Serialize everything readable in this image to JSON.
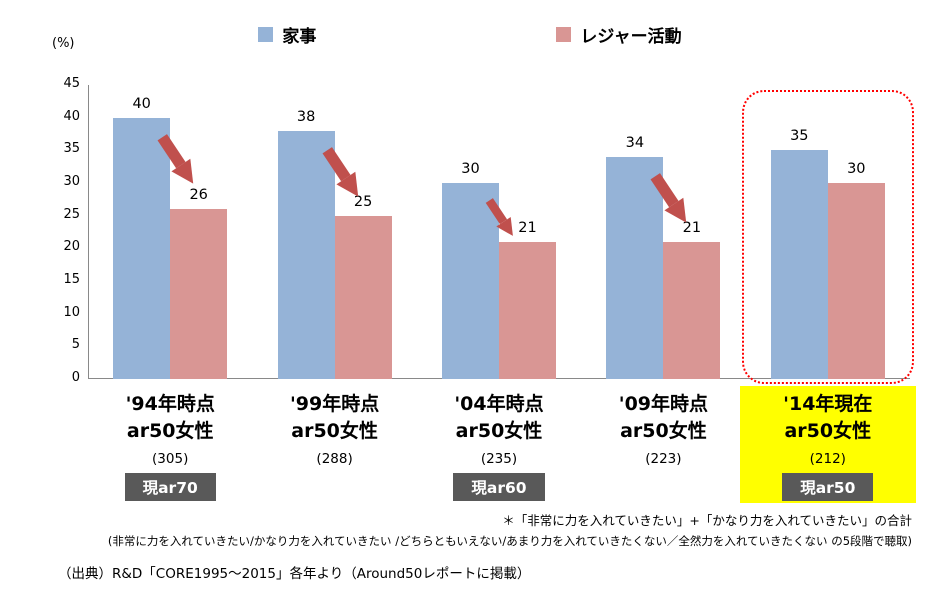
{
  "chart_data": {
    "type": "bar",
    "unit_label": "(%)",
    "ylim": [
      0,
      45
    ],
    "ytick_step": 5,
    "grid": false,
    "legend_position": "top",
    "series": [
      {
        "name": "家事",
        "color": "#95B3D7",
        "values": [
          40,
          38,
          30,
          34,
          35
        ]
      },
      {
        "name": "レジャー活動",
        "color": "#D99694",
        "values": [
          26,
          25,
          21,
          21,
          30
        ]
      }
    ],
    "categories": [
      {
        "line1": "'94年時点",
        "line2": "ar50女性",
        "count": "(305)",
        "badge": "現ar70",
        "arrow": true,
        "highlight": false
      },
      {
        "line1": "'99年時点",
        "line2": "ar50女性",
        "count": "(288)",
        "badge": "",
        "arrow": true,
        "highlight": false
      },
      {
        "line1": "'04年時点",
        "line2": "ar50女性",
        "count": "(235)",
        "badge": "現ar60",
        "arrow": true,
        "highlight": false
      },
      {
        "line1": "'09年時点",
        "line2": "ar50女性",
        "count": "(223)",
        "badge": "",
        "arrow": true,
        "highlight": false
      },
      {
        "line1": "'14年現在",
        "line2": "ar50女性",
        "count": "(212)",
        "badge": "現ar50",
        "arrow": false,
        "highlight": true
      }
    ]
  },
  "colors": {
    "bar_housework": "#95B3D7",
    "bar_leisure": "#D99694",
    "trend_arrow": "#C0504D",
    "highlight_border": "#FF0000",
    "highlight_bg": "#FFFF00",
    "badge_bg": "#595959",
    "axis": "#898989"
  },
  "footnotes": {
    "note1": "＊「非常に力を入れていきたい」+「かなり力を入れていきたい」の合計",
    "note2": "(非常に力を入れていきたい/かなり力を入れていきたい /どちらともいえない/あまり力を入れていきたくない／全然力を入れていきたくない の5段階で聴取)",
    "source": "（出典）R&D「CORE1995～2015」各年より（Around50レポートに掲載）"
  }
}
